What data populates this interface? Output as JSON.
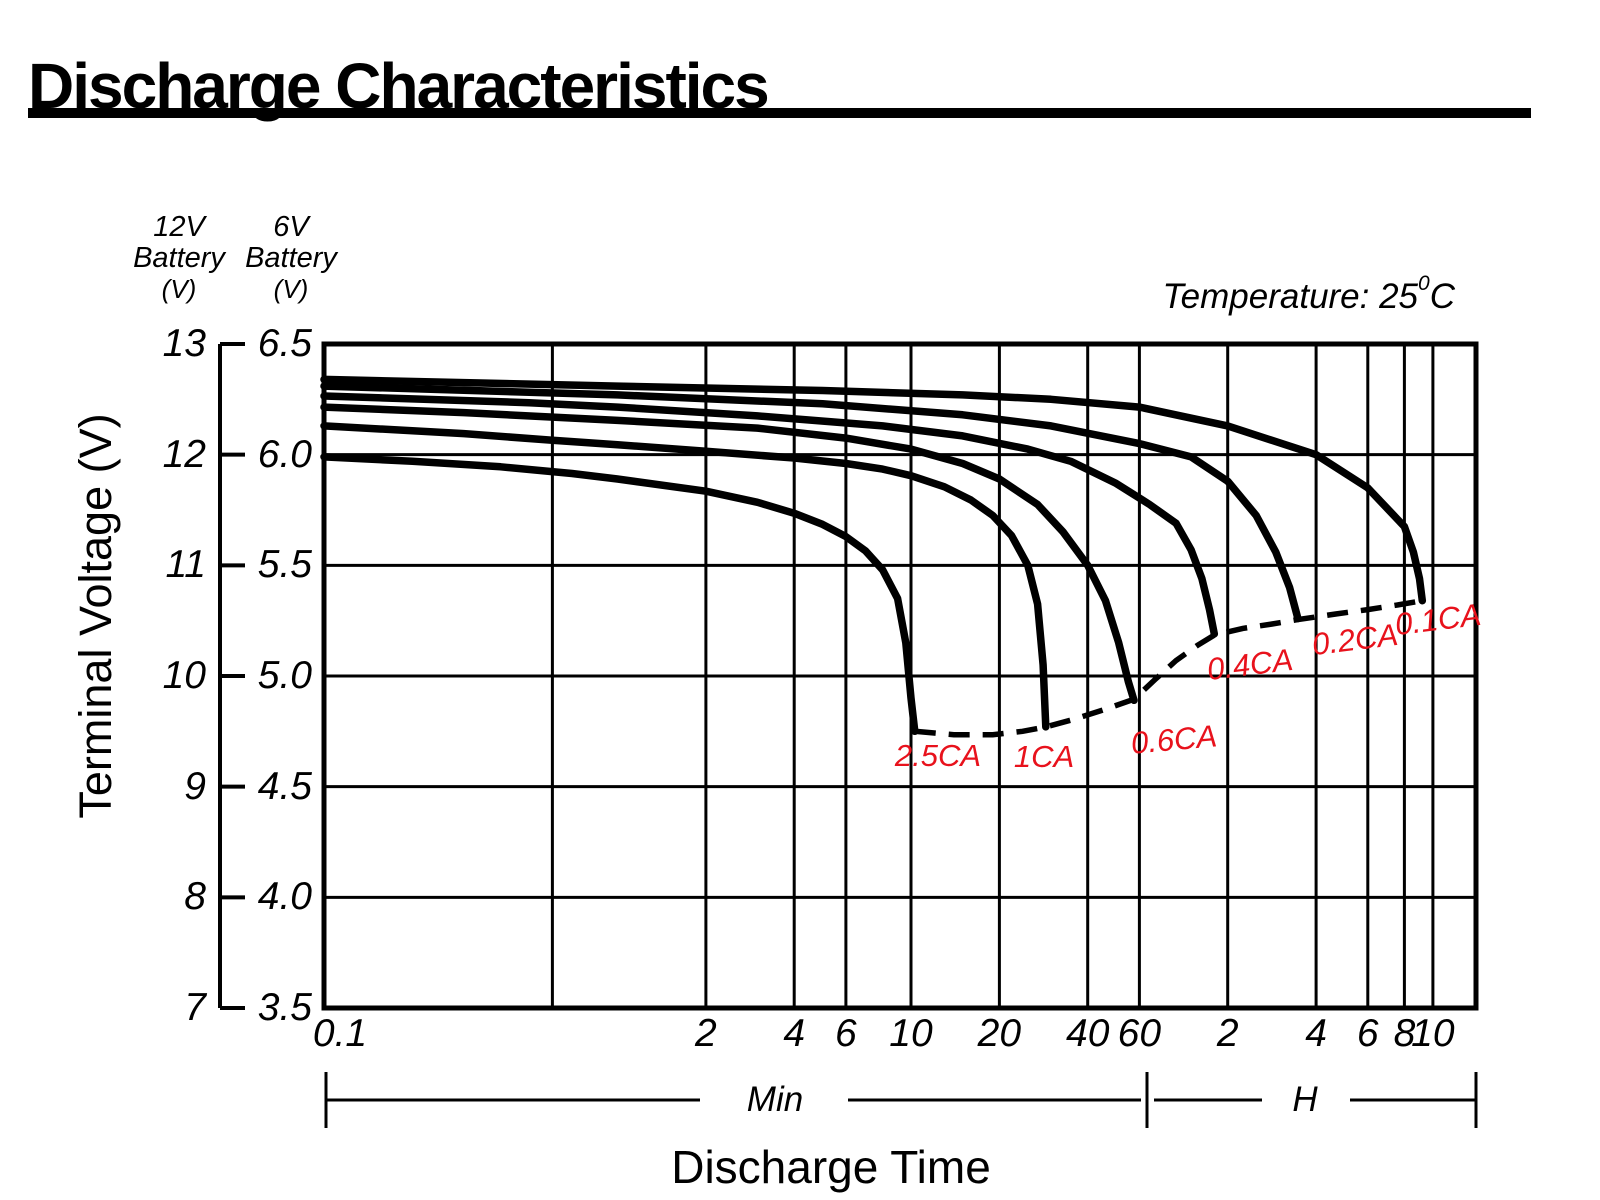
{
  "title": "Discharge Characteristics",
  "chart_data": {
    "type": "line",
    "title": "Discharge Characteristics",
    "temperature_note": {
      "prefix": "Temperature: 25",
      "sup_digit": "0",
      "suffix": "C"
    },
    "y_axis": {
      "title": "Terminal Voltage (V)",
      "left_scale_header": [
        "12V",
        "Battery",
        "(V)"
      ],
      "right_scale_header": [
        "6V",
        "Battery",
        "(V)"
      ],
      "v12_tick_labels": [
        "13",
        "12",
        "11",
        "10",
        "9",
        "8",
        "7"
      ],
      "v6_tick_labels": [
        "6.5",
        "6.0",
        "5.5",
        "5.0",
        "4.5",
        "4.0",
        "3.5"
      ],
      "v12_range": [
        7,
        13
      ],
      "grid": "on"
    },
    "x_axis": {
      "title": "Discharge Time",
      "scale": "log",
      "range_minutes": [
        0.1,
        840
      ],
      "minutes_section_label": "Min",
      "hours_section_label": "H",
      "ticks": [
        {
          "t": 0.1,
          "label": "0.1"
        },
        {
          "t": 2,
          "label": "2"
        },
        {
          "t": 4,
          "label": "4"
        },
        {
          "t": 6,
          "label": "6"
        },
        {
          "t": 10,
          "label": "10"
        },
        {
          "t": 20,
          "label": "20"
        },
        {
          "t": 40,
          "label": "40"
        },
        {
          "t": 60,
          "label": "60"
        },
        {
          "t": 120,
          "label": "2"
        },
        {
          "t": 240,
          "label": "4"
        },
        {
          "t": 360,
          "label": "6"
        },
        {
          "t": 480,
          "label": "8"
        },
        {
          "t": 600,
          "label": "10"
        }
      ],
      "gridlines_minutes": [
        0.6,
        2,
        4,
        6,
        10,
        20,
        40,
        60,
        120,
        240,
        360,
        480,
        600
      ]
    },
    "series": [
      {
        "name": "2.5CA",
        "points": [
          [
            0.1,
            11.98
          ],
          [
            0.2,
            11.94
          ],
          [
            0.4,
            11.89
          ],
          [
            0.7,
            11.83
          ],
          [
            1,
            11.78
          ],
          [
            2,
            11.67
          ],
          [
            3,
            11.57
          ],
          [
            4,
            11.47
          ],
          [
            5,
            11.37
          ],
          [
            6,
            11.26
          ],
          [
            7,
            11.13
          ],
          [
            8,
            10.96
          ],
          [
            9,
            10.7
          ],
          [
            9.6,
            10.3
          ],
          [
            10,
            9.8
          ],
          [
            10.3,
            9.5
          ]
        ]
      },
      {
        "name": "1CA",
        "points": [
          [
            0.1,
            12.26
          ],
          [
            0.3,
            12.19
          ],
          [
            0.6,
            12.13
          ],
          [
            1,
            12.09
          ],
          [
            2,
            12.03
          ],
          [
            4,
            11.97
          ],
          [
            6,
            11.92
          ],
          [
            8,
            11.87
          ],
          [
            10,
            11.81
          ],
          [
            13,
            11.71
          ],
          [
            16,
            11.59
          ],
          [
            19,
            11.45
          ],
          [
            22,
            11.27
          ],
          [
            25,
            11.0
          ],
          [
            27,
            10.65
          ],
          [
            28.2,
            10.1
          ],
          [
            28.8,
            9.54
          ]
        ]
      },
      {
        "name": "0.6CA",
        "points": [
          [
            0.1,
            12.43
          ],
          [
            0.3,
            12.38
          ],
          [
            1,
            12.31
          ],
          [
            3,
            12.24
          ],
          [
            6,
            12.15
          ],
          [
            10,
            12.05
          ],
          [
            15,
            11.92
          ],
          [
            20,
            11.78
          ],
          [
            27,
            11.55
          ],
          [
            33,
            11.3
          ],
          [
            40,
            11.0
          ],
          [
            46,
            10.68
          ],
          [
            51,
            10.3
          ],
          [
            55,
            9.95
          ],
          [
            57.5,
            9.78
          ]
        ]
      },
      {
        "name": "0.4CA",
        "points": [
          [
            0.1,
            12.53
          ],
          [
            0.5,
            12.47
          ],
          [
            1,
            12.43
          ],
          [
            3,
            12.35
          ],
          [
            8,
            12.26
          ],
          [
            15,
            12.17
          ],
          [
            25,
            12.05
          ],
          [
            35,
            11.94
          ],
          [
            50,
            11.74
          ],
          [
            65,
            11.55
          ],
          [
            80,
            11.38
          ],
          [
            90,
            11.14
          ],
          [
            98,
            10.88
          ],
          [
            104,
            10.6
          ],
          [
            108,
            10.38
          ]
        ]
      },
      {
        "name": "0.2CA",
        "points": [
          [
            0.1,
            12.62
          ],
          [
            1,
            12.54
          ],
          [
            5,
            12.46
          ],
          [
            15,
            12.36
          ],
          [
            30,
            12.26
          ],
          [
            60,
            12.1
          ],
          [
            90,
            11.98
          ],
          [
            120,
            11.76
          ],
          [
            150,
            11.45
          ],
          [
            175,
            11.12
          ],
          [
            195,
            10.8
          ],
          [
            208,
            10.52
          ]
        ]
      },
      {
        "name": "0.1CA",
        "points": [
          [
            0.1,
            12.68
          ],
          [
            1,
            12.62
          ],
          [
            5,
            12.58
          ],
          [
            15,
            12.54
          ],
          [
            30,
            12.5
          ],
          [
            60,
            12.43
          ],
          [
            120,
            12.26
          ],
          [
            240,
            12.0
          ],
          [
            360,
            11.7
          ],
          [
            480,
            11.35
          ],
          [
            515,
            11.12
          ],
          [
            540,
            10.88
          ],
          [
            552,
            10.68
          ]
        ]
      }
    ],
    "cutoff_locus": {
      "style": "dashed",
      "points": [
        [
          10.3,
          9.5
        ],
        [
          14,
          9.47
        ],
        [
          19,
          9.47
        ],
        [
          24,
          9.5
        ],
        [
          28.8,
          9.54
        ],
        [
          36,
          9.61
        ],
        [
          46,
          9.7
        ],
        [
          57.5,
          9.79
        ],
        [
          68,
          9.97
        ],
        [
          80,
          10.14
        ],
        [
          95,
          10.28
        ],
        [
          108,
          10.37
        ],
        [
          135,
          10.43
        ],
        [
          170,
          10.47
        ],
        [
          208,
          10.51
        ],
        [
          280,
          10.56
        ],
        [
          360,
          10.6
        ],
        [
          450,
          10.64
        ],
        [
          552,
          10.68
        ]
      ]
    },
    "annotations": [
      {
        "text": "2.5CA",
        "t_minutes": 12.4,
        "v12": 9.27,
        "rotate_deg": 0
      },
      {
        "text": "1CA",
        "t_minutes": 28.5,
        "v12": 9.26,
        "rotate_deg": 0
      },
      {
        "text": "0.6CA",
        "t_minutes": 79,
        "v12": 9.41,
        "rotate_deg": -5
      },
      {
        "text": "0.4CA",
        "t_minutes": 143,
        "v12": 10.09,
        "rotate_deg": -7
      },
      {
        "text": "0.2CA",
        "t_minutes": 326,
        "v12": 10.32,
        "rotate_deg": -7
      },
      {
        "text": "0.1CA",
        "t_minutes": 625,
        "v12": 10.5,
        "rotate_deg": -7
      }
    ],
    "colors": {
      "curve": "#000000",
      "grid": "#000000",
      "annotation": "#E8121C",
      "background": "#FFFFFF"
    }
  }
}
